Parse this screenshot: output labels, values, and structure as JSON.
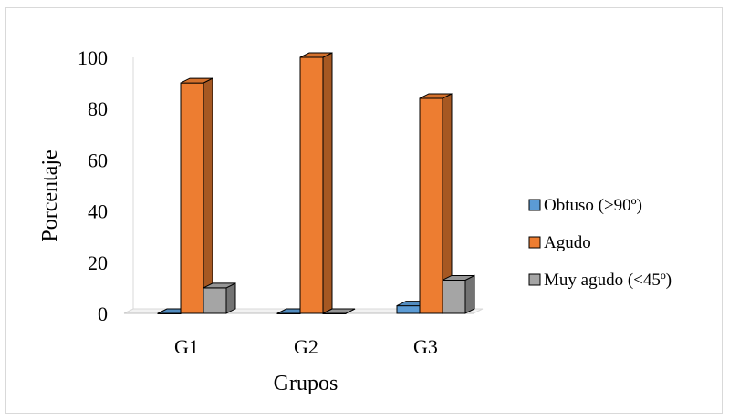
{
  "chart_data": {
    "type": "bar",
    "title": "",
    "xlabel": "Grupos",
    "ylabel": "Porcentaje",
    "categories": [
      "G1",
      "G2",
      "G3"
    ],
    "yticks": [
      "0",
      "20",
      "40",
      "60",
      "80",
      "100"
    ],
    "ylim": [
      0,
      100
    ],
    "grid": false,
    "legend_position": "right",
    "series": [
      {
        "name": "Obtuso (>90º)",
        "values": [
          0,
          0,
          3
        ],
        "color": "#5b9bd5"
      },
      {
        "name": "Agudo",
        "values": [
          90,
          100,
          84
        ],
        "color": "#ed7d31"
      },
      {
        "name": "Muy agudo (<45º)",
        "values": [
          10,
          0,
          13
        ],
        "color": "#a5a5a5"
      }
    ]
  }
}
